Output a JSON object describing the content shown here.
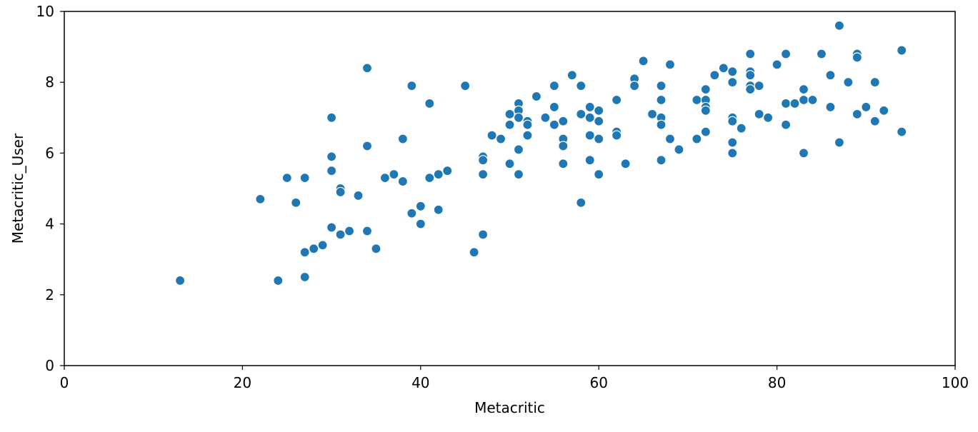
{
  "chart_data": {
    "type": "scatter",
    "title": "",
    "xlabel": "Metacritic",
    "ylabel": "Metacritic_User",
    "xlim": [
      0,
      100
    ],
    "ylim": [
      0,
      10
    ],
    "x_ticks": [
      0,
      20,
      40,
      60,
      80,
      100
    ],
    "y_ticks": [
      0,
      2,
      4,
      6,
      8,
      10
    ],
    "grid": false,
    "color": "#1f77b4",
    "points": [
      [
        13,
        2.4
      ],
      [
        22,
        4.7
      ],
      [
        24,
        2.4
      ],
      [
        25,
        5.3
      ],
      [
        26,
        4.6
      ],
      [
        27,
        5.3
      ],
      [
        27,
        3.2
      ],
      [
        27,
        2.5
      ],
      [
        28,
        3.3
      ],
      [
        29,
        3.4
      ],
      [
        30,
        7.0
      ],
      [
        30,
        5.9
      ],
      [
        30,
        5.5
      ],
      [
        30,
        3.9
      ],
      [
        31,
        5.0
      ],
      [
        31,
        4.9
      ],
      [
        31,
        3.7
      ],
      [
        32,
        3.8
      ],
      [
        33,
        4.8
      ],
      [
        34,
        8.4
      ],
      [
        34,
        6.2
      ],
      [
        34,
        3.8
      ],
      [
        35,
        3.3
      ],
      [
        36,
        5.3
      ],
      [
        37,
        5.4
      ],
      [
        38,
        6.4
      ],
      [
        38,
        5.2
      ],
      [
        39,
        7.9
      ],
      [
        39,
        4.3
      ],
      [
        40,
        4.5
      ],
      [
        40,
        4.0
      ],
      [
        41,
        7.4
      ],
      [
        41,
        5.3
      ],
      [
        42,
        5.4
      ],
      [
        42,
        4.4
      ],
      [
        43,
        5.5
      ],
      [
        45,
        7.9
      ],
      [
        46,
        3.2
      ],
      [
        47,
        5.9
      ],
      [
        47,
        5.8
      ],
      [
        47,
        5.4
      ],
      [
        47,
        3.7
      ],
      [
        48,
        6.5
      ],
      [
        49,
        6.4
      ],
      [
        50,
        7.1
      ],
      [
        50,
        6.8
      ],
      [
        50,
        5.7
      ],
      [
        51,
        7.4
      ],
      [
        51,
        7.2
      ],
      [
        51,
        7.0
      ],
      [
        51,
        6.1
      ],
      [
        51,
        5.4
      ],
      [
        52,
        6.9
      ],
      [
        52,
        6.8
      ],
      [
        52,
        6.5
      ],
      [
        53,
        7.6
      ],
      [
        54,
        7.0
      ],
      [
        55,
        7.9
      ],
      [
        55,
        7.3
      ],
      [
        55,
        6.8
      ],
      [
        56,
        6.9
      ],
      [
        56,
        6.4
      ],
      [
        56,
        6.2
      ],
      [
        56,
        5.7
      ],
      [
        57,
        8.2
      ],
      [
        58,
        7.9
      ],
      [
        58,
        7.1
      ],
      [
        58,
        4.6
      ],
      [
        59,
        7.3
      ],
      [
        59,
        7.0
      ],
      [
        59,
        6.5
      ],
      [
        59,
        5.8
      ],
      [
        60,
        7.2
      ],
      [
        60,
        6.9
      ],
      [
        60,
        6.4
      ],
      [
        60,
        5.4
      ],
      [
        62,
        7.5
      ],
      [
        62,
        6.6
      ],
      [
        62,
        6.5
      ],
      [
        63,
        5.7
      ],
      [
        64,
        8.1
      ],
      [
        64,
        7.9
      ],
      [
        65,
        8.6
      ],
      [
        66,
        7.1
      ],
      [
        67,
        7.9
      ],
      [
        67,
        7.5
      ],
      [
        67,
        7.0
      ],
      [
        67,
        6.8
      ],
      [
        67,
        5.8
      ],
      [
        68,
        8.5
      ],
      [
        68,
        6.4
      ],
      [
        69,
        6.1
      ],
      [
        71,
        7.5
      ],
      [
        71,
        6.4
      ],
      [
        72,
        7.8
      ],
      [
        72,
        7.5
      ],
      [
        72,
        7.3
      ],
      [
        72,
        7.2
      ],
      [
        72,
        6.6
      ],
      [
        73,
        8.2
      ],
      [
        74,
        8.4
      ],
      [
        75,
        8.3
      ],
      [
        75,
        8.0
      ],
      [
        75,
        7.0
      ],
      [
        75,
        6.9
      ],
      [
        75,
        6.3
      ],
      [
        75,
        6.0
      ],
      [
        76,
        6.7
      ],
      [
        77,
        8.8
      ],
      [
        77,
        8.3
      ],
      [
        77,
        8.2
      ],
      [
        77,
        7.9
      ],
      [
        77,
        7.8
      ],
      [
        78,
        7.9
      ],
      [
        78,
        7.1
      ],
      [
        79,
        7.0
      ],
      [
        80,
        8.5
      ],
      [
        81,
        8.8
      ],
      [
        81,
        7.4
      ],
      [
        81,
        6.8
      ],
      [
        82,
        7.4
      ],
      [
        83,
        7.8
      ],
      [
        83,
        7.5
      ],
      [
        83,
        6.0
      ],
      [
        84,
        7.5
      ],
      [
        85,
        8.8
      ],
      [
        86,
        8.2
      ],
      [
        86,
        7.3
      ],
      [
        87,
        9.6
      ],
      [
        87,
        6.3
      ],
      [
        88,
        8.0
      ],
      [
        89,
        8.8
      ],
      [
        89,
        8.7
      ],
      [
        89,
        7.1
      ],
      [
        90,
        7.3
      ],
      [
        91,
        8.0
      ],
      [
        91,
        6.9
      ],
      [
        92,
        7.2
      ],
      [
        94,
        8.9
      ],
      [
        94,
        6.6
      ]
    ]
  }
}
